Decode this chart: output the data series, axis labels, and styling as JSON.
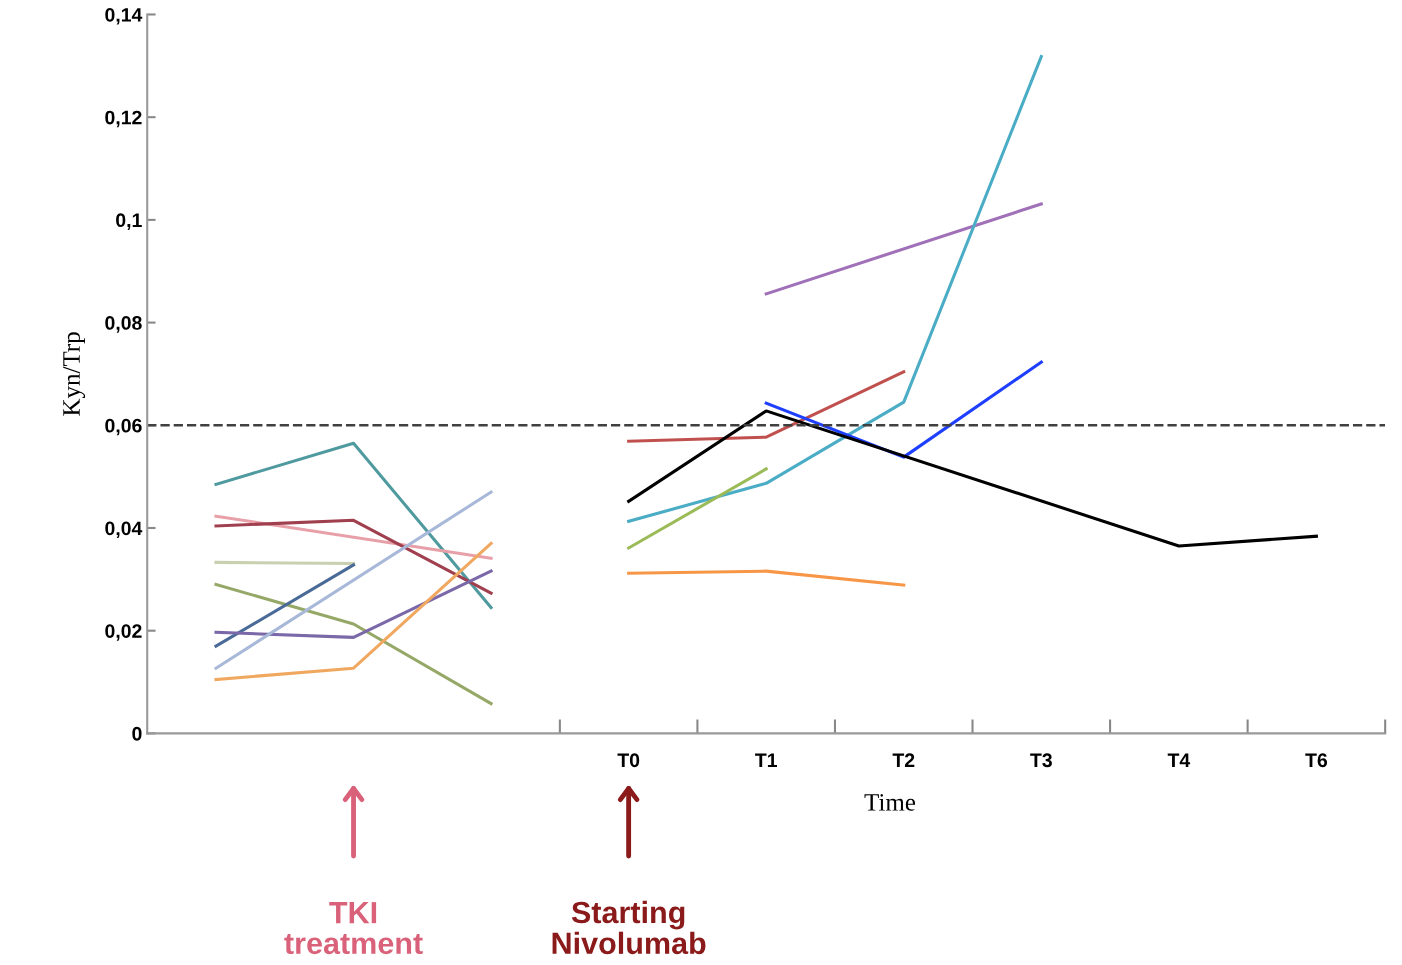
{
  "chart_data": {
    "type": "line",
    "xlabel": "Time",
    "ylabel": "Kyn/Trp",
    "categories": [
      null,
      null,
      null,
      "T0",
      "T1",
      "T2",
      "T3",
      "T4",
      "T6"
    ],
    "ylim": [
      0,
      0.14
    ],
    "yticks": [
      0,
      {
        "value": 0.02,
        "label": "0,02"
      },
      {
        "value": 0.04,
        "label": "0,04"
      },
      {
        "value": 0.06,
        "label": "0,06"
      },
      {
        "value": 0.08,
        "label": "0,08"
      },
      {
        "value": 0.1,
        "label": "0,1"
      },
      {
        "value": 0.12,
        "label": "0,12"
      },
      {
        "value": 0.14,
        "label": "0,14"
      }
    ],
    "grid": false,
    "legend": false,
    "marker": "none",
    "line_style": "solid",
    "series": [
      {
        "color": "#4f9a9e",
        "values": [
          0.0485,
          0.0565,
          0.0245,
          null,
          null,
          null,
          null,
          null,
          null
        ]
      },
      {
        "color": "#e8a0a8",
        "values": [
          0.0423,
          null,
          0.0341,
          null,
          null,
          null,
          null,
          null,
          null
        ]
      },
      {
        "color": "#a0404f",
        "values": [
          0.0404,
          0.0415,
          0.0273,
          null,
          null,
          null,
          null,
          null,
          null
        ]
      },
      {
        "color": "#c8d0b0",
        "values": [
          0.0333,
          0.0331,
          null,
          null,
          null,
          null,
          null,
          null,
          null
        ]
      },
      {
        "color": "#96a868",
        "values": [
          0.029,
          0.0213,
          0.0058,
          null,
          null,
          null,
          null,
          null,
          null
        ]
      },
      {
        "color": "#4a6a98",
        "values": [
          0.017,
          0.0328,
          null,
          null,
          null,
          null,
          null,
          null,
          null
        ]
      },
      {
        "color": "#7a68a8",
        "values": [
          0.0197,
          0.0187,
          0.0316,
          null,
          null,
          null,
          null,
          null,
          null
        ]
      },
      {
        "color": "#a8b8d8",
        "values": [
          0.0127,
          null,
          0.047,
          null,
          null,
          null,
          null,
          null,
          null
        ]
      },
      {
        "color": "#f0a860",
        "values": [
          0.0105,
          0.0127,
          0.037,
          null,
          null,
          null,
          null,
          null,
          null
        ]
      },
      {
        "color": "#a070b8",
        "values": [
          null,
          null,
          null,
          null,
          0.0856,
          null,
          0.1031,
          null,
          null
        ]
      },
      {
        "color": "#c0504d",
        "values": [
          null,
          null,
          null,
          0.0569,
          0.0577,
          0.0704,
          null,
          null,
          null
        ]
      },
      {
        "color": "#4bacc6",
        "values": [
          null,
          null,
          null,
          0.0413,
          0.0487,
          0.0645,
          0.1318,
          null,
          null
        ]
      },
      {
        "color": "#1f3fff",
        "values": [
          null,
          null,
          null,
          null,
          0.0643,
          0.0538,
          0.0723,
          null,
          null
        ]
      },
      {
        "color": "#9bbb59",
        "values": [
          null,
          null,
          null,
          0.0361,
          0.0515,
          null,
          null,
          null,
          null
        ]
      },
      {
        "color": "#f79646",
        "values": [
          null,
          null,
          null,
          0.0312,
          0.0316,
          0.0289,
          null,
          null,
          null
        ]
      },
      {
        "color": "#000000",
        "values": [
          null,
          null,
          null,
          0.0452,
          0.0628,
          null,
          null,
          0.0365,
          0.0384
        ]
      }
    ],
    "ref_lines": [
      {
        "axis": "y",
        "value": 0.06,
        "color": "#404040",
        "line_style": "dashed"
      }
    ],
    "annotations": [
      "TKI\ntreatment",
      "Starting\nNivolumab"
    ]
  }
}
